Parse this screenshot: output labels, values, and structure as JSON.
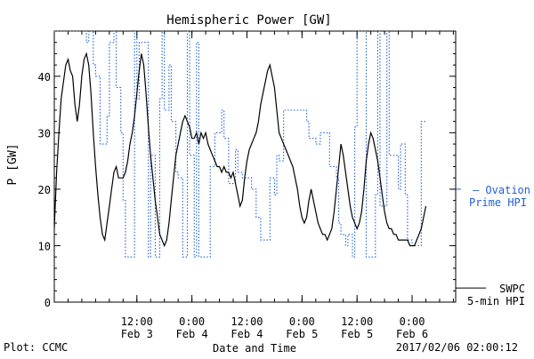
{
  "chart_data": {
    "type": "line",
    "title": "Hemispheric Power [GW]",
    "xlabel": "Date and Time",
    "ylabel": "P [GW]",
    "ylim": [
      0,
      48
    ],
    "y_ticks": [
      0,
      10,
      20,
      30,
      40
    ],
    "x_unit": "hours since 2017-02-02 18:00 UT",
    "xlim": [
      0,
      87.5
    ],
    "x_ticks": [
      {
        "x": 18,
        "time": "12:00",
        "date": "Feb 3"
      },
      {
        "x": 30,
        "time": "0:00",
        "date": "Feb 4"
      },
      {
        "x": 42,
        "time": "12:00",
        "date": "Feb 4"
      },
      {
        "x": 54,
        "time": "0:00",
        "date": "Feb 5"
      },
      {
        "x": 66,
        "time": "12:00",
        "date": "Feb 5"
      },
      {
        "x": 78,
        "time": "0:00",
        "date": "Feb 6"
      }
    ],
    "series": [
      {
        "name": "Ovation Prime HPI",
        "legend_lines": [
          "— Ovation",
          "Prime HPI"
        ],
        "color": "#1f5fd6",
        "style": "dotted-step",
        "x": [
          0,
          7,
          7.5,
          8.5,
          9,
          10,
          11.5,
          12,
          13,
          13.5,
          14.5,
          15,
          15.5,
          17.5,
          18,
          18.5,
          20.5,
          21,
          22,
          23,
          23.5,
          24,
          25,
          25.5,
          26.5,
          27,
          28,
          29,
          29.5,
          30.5,
          31,
          31.5,
          33,
          34,
          35,
          36.5,
          37,
          38,
          39,
          39.5,
          40,
          41,
          42,
          43,
          44,
          45,
          46.5,
          47,
          48,
          48.5,
          49,
          50,
          52,
          55,
          55.5,
          57,
          58,
          60,
          61.5,
          62,
          62.5,
          63.5,
          64,
          65,
          65.5,
          66,
          68,
          68.5,
          70,
          70.5,
          71,
          72.5,
          73,
          75,
          75.5,
          76.5,
          77,
          78,
          78.5,
          80,
          81
        ],
        "y": [
          48,
          46,
          48,
          42,
          40,
          28,
          33,
          46,
          48,
          38,
          30,
          18,
          8,
          48,
          36,
          46,
          8,
          26,
          8,
          36,
          48,
          34,
          42,
          32,
          23,
          22,
          8,
          48,
          26,
          8,
          46,
          8,
          8,
          24,
          30,
          34,
          29,
          21,
          21,
          27,
          23,
          22,
          22,
          20,
          15,
          11,
          11,
          22,
          19,
          26,
          25,
          34,
          34,
          32,
          29,
          28,
          30,
          24,
          22,
          14,
          12,
          10,
          12,
          8,
          31,
          48,
          8,
          8,
          19,
          48,
          17,
          48,
          26,
          20,
          28,
          19,
          11,
          10,
          10,
          32,
          32
        ]
      },
      {
        "name": "SWPC 5-min HPI",
        "legend_lines": [
          "SWPC",
          "5-min HPI"
        ],
        "color": "#000000",
        "style": "solid",
        "x": [
          0,
          0.5,
          1,
          1.5,
          2,
          2.5,
          3,
          3.5,
          4,
          4.5,
          5,
          5.5,
          6,
          6.5,
          7,
          7.5,
          8,
          8.5,
          9,
          9.5,
          10,
          10.5,
          11,
          11.5,
          12,
          12.5,
          13,
          13.5,
          14,
          14.5,
          15,
          15.5,
          16,
          16.5,
          17,
          17.5,
          18,
          18.5,
          19,
          19.5,
          20,
          20.5,
          21,
          21.5,
          22,
          22.5,
          23,
          23.5,
          24,
          24.5,
          25,
          25.5,
          26,
          26.5,
          27,
          27.5,
          28,
          28.5,
          29,
          29.5,
          30,
          30.5,
          31,
          31.5,
          32,
          32.5,
          33,
          33.5,
          34,
          34.5,
          35,
          35.5,
          36,
          36.5,
          37,
          37.5,
          38,
          38.5,
          39,
          39.5,
          40,
          40.5,
          41,
          41.5,
          42,
          42.5,
          43,
          43.5,
          44,
          44.5,
          45,
          45.5,
          46,
          46.5,
          47,
          47.5,
          48,
          48.5,
          49,
          49.5,
          50,
          50.5,
          51,
          51.5,
          52,
          52.5,
          53,
          53.5,
          54,
          54.5,
          55,
          55.5,
          56,
          56.5,
          57,
          57.5,
          58,
          58.5,
          59,
          59.5,
          60,
          60.5,
          61,
          61.5,
          62,
          62.5,
          63,
          63.5,
          64,
          64.5,
          65,
          65.5,
          66,
          66.5,
          67,
          67.5,
          68,
          68.5,
          69,
          69.5,
          70,
          70.5,
          71,
          71.5,
          72,
          72.5,
          73,
          73.5,
          74,
          74.5,
          75,
          75.5,
          76,
          76.5,
          77,
          77.5,
          78,
          78.5,
          79,
          79.5,
          80,
          80.5,
          81
        ],
        "y": [
          13,
          23,
          30,
          36,
          39,
          42,
          43,
          41,
          40,
          35,
          32,
          35,
          40,
          43,
          44,
          42,
          37,
          30,
          24,
          19,
          15,
          12,
          11,
          14,
          17,
          20,
          23,
          24,
          22,
          22,
          22,
          23,
          25,
          28,
          30,
          33,
          37,
          41,
          44,
          42,
          37,
          31,
          26,
          22,
          18,
          15,
          12,
          11,
          10,
          11,
          14,
          18,
          22,
          26,
          28,
          30,
          32,
          33,
          32,
          31,
          29,
          29,
          30,
          28,
          30,
          29,
          30,
          28,
          27,
          26,
          25,
          24,
          24,
          23,
          24,
          23,
          23,
          22,
          23,
          21,
          19,
          17,
          18,
          22,
          25,
          27,
          28,
          29,
          30,
          32,
          35,
          37,
          39,
          41,
          42,
          40,
          38,
          34,
          30,
          29,
          28,
          27,
          26,
          25,
          24,
          22,
          20,
          17,
          15,
          14,
          15,
          18,
          20,
          18,
          16,
          14,
          13,
          12,
          12,
          11,
          12,
          13,
          16,
          20,
          24,
          28,
          26,
          23,
          20,
          17,
          15,
          14,
          13,
          14,
          16,
          20,
          25,
          28,
          30,
          29,
          27,
          25,
          22,
          19,
          16,
          14,
          13,
          13,
          12,
          12,
          11,
          11,
          11,
          11,
          11,
          10,
          10,
          10,
          11,
          12,
          13,
          15,
          17
        ]
      }
    ]
  },
  "footer": {
    "plot_credit": "Plot: CCMC",
    "timestamp": "2017/02/06 02:00:12"
  }
}
